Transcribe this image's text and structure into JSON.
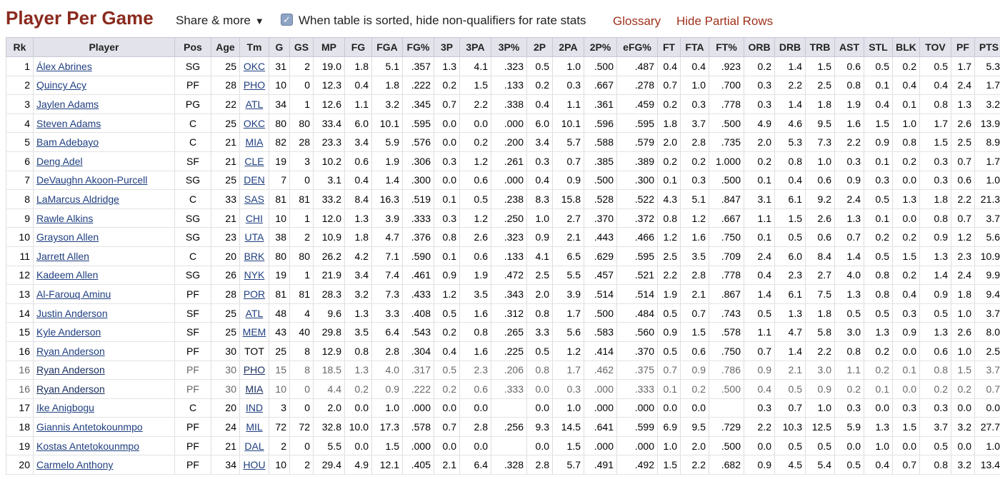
{
  "header": {
    "title": "Player Per Game",
    "share_label": "Share & more",
    "share_arrow": "▼",
    "checkbox_checked": true,
    "checkbox_label": "When table is sorted, hide non-qualifiers for rate stats",
    "glossary_link": "Glossary",
    "hide_partial_link": "Hide Partial Rows"
  },
  "colors": {
    "title": "#8a2a1e",
    "link": "#a0321c",
    "table_link": "#1f3f80",
    "header_bg": "#e3e3ec"
  },
  "table": {
    "columns": [
      "Rk",
      "Player",
      "Pos",
      "Age",
      "Tm",
      "G",
      "GS",
      "MP",
      "FG",
      "FGA",
      "FG%",
      "3P",
      "3PA",
      "3P%",
      "2P",
      "2PA",
      "2P%",
      "eFG%",
      "FT",
      "FTA",
      "FT%",
      "ORB",
      "DRB",
      "TRB",
      "AST",
      "STL",
      "BLK",
      "TOV",
      "PF",
      "PTS"
    ],
    "rows": [
      {
        "partial": false,
        "cells": [
          "1",
          "Álex Abrines",
          "SG",
          "25",
          "OKC",
          "31",
          "2",
          "19.0",
          "1.8",
          "5.1",
          ".357",
          "1.3",
          "4.1",
          ".323",
          "0.5",
          "1.0",
          ".500",
          ".487",
          "0.4",
          "0.4",
          ".923",
          "0.2",
          "1.4",
          "1.5",
          "0.6",
          "0.5",
          "0.2",
          "0.5",
          "1.7",
          "5.3"
        ]
      },
      {
        "partial": false,
        "cells": [
          "2",
          "Quincy Acy",
          "PF",
          "28",
          "PHO",
          "10",
          "0",
          "12.3",
          "0.4",
          "1.8",
          ".222",
          "0.2",
          "1.5",
          ".133",
          "0.2",
          "0.3",
          ".667",
          ".278",
          "0.7",
          "1.0",
          ".700",
          "0.3",
          "2.2",
          "2.5",
          "0.8",
          "0.1",
          "0.4",
          "0.4",
          "2.4",
          "1.7"
        ]
      },
      {
        "partial": false,
        "cells": [
          "3",
          "Jaylen Adams",
          "PG",
          "22",
          "ATL",
          "34",
          "1",
          "12.6",
          "1.1",
          "3.2",
          ".345",
          "0.7",
          "2.2",
          ".338",
          "0.4",
          "1.1",
          ".361",
          ".459",
          "0.2",
          "0.3",
          ".778",
          "0.3",
          "1.4",
          "1.8",
          "1.9",
          "0.4",
          "0.1",
          "0.8",
          "1.3",
          "3.2"
        ]
      },
      {
        "partial": false,
        "cells": [
          "4",
          "Steven Adams",
          "C",
          "25",
          "OKC",
          "80",
          "80",
          "33.4",
          "6.0",
          "10.1",
          ".595",
          "0.0",
          "0.0",
          ".000",
          "6.0",
          "10.1",
          ".596",
          ".595",
          "1.8",
          "3.7",
          ".500",
          "4.9",
          "4.6",
          "9.5",
          "1.6",
          "1.5",
          "1.0",
          "1.7",
          "2.6",
          "13.9"
        ]
      },
      {
        "partial": false,
        "cells": [
          "5",
          "Bam Adebayo",
          "C",
          "21",
          "MIA",
          "82",
          "28",
          "23.3",
          "3.4",
          "5.9",
          ".576",
          "0.0",
          "0.2",
          ".200",
          "3.4",
          "5.7",
          ".588",
          ".579",
          "2.0",
          "2.8",
          ".735",
          "2.0",
          "5.3",
          "7.3",
          "2.2",
          "0.9",
          "0.8",
          "1.5",
          "2.5",
          "8.9"
        ]
      },
      {
        "partial": false,
        "cells": [
          "6",
          "Deng Adel",
          "SF",
          "21",
          "CLE",
          "19",
          "3",
          "10.2",
          "0.6",
          "1.9",
          ".306",
          "0.3",
          "1.2",
          ".261",
          "0.3",
          "0.7",
          ".385",
          ".389",
          "0.2",
          "0.2",
          "1.000",
          "0.2",
          "0.8",
          "1.0",
          "0.3",
          "0.1",
          "0.2",
          "0.3",
          "0.7",
          "1.7"
        ]
      },
      {
        "partial": false,
        "cells": [
          "7",
          "DeVaughn Akoon-Purcell",
          "SG",
          "25",
          "DEN",
          "7",
          "0",
          "3.1",
          "0.4",
          "1.4",
          ".300",
          "0.0",
          "0.6",
          ".000",
          "0.4",
          "0.9",
          ".500",
          ".300",
          "0.1",
          "0.3",
          ".500",
          "0.1",
          "0.4",
          "0.6",
          "0.9",
          "0.3",
          "0.0",
          "0.3",
          "0.6",
          "1.0"
        ]
      },
      {
        "partial": false,
        "cells": [
          "8",
          "LaMarcus Aldridge",
          "C",
          "33",
          "SAS",
          "81",
          "81",
          "33.2",
          "8.4",
          "16.3",
          ".519",
          "0.1",
          "0.5",
          ".238",
          "8.3",
          "15.8",
          ".528",
          ".522",
          "4.3",
          "5.1",
          ".847",
          "3.1",
          "6.1",
          "9.2",
          "2.4",
          "0.5",
          "1.3",
          "1.8",
          "2.2",
          "21.3"
        ]
      },
      {
        "partial": false,
        "cells": [
          "9",
          "Rawle Alkins",
          "SG",
          "21",
          "CHI",
          "10",
          "1",
          "12.0",
          "1.3",
          "3.9",
          ".333",
          "0.3",
          "1.2",
          ".250",
          "1.0",
          "2.7",
          ".370",
          ".372",
          "0.8",
          "1.2",
          ".667",
          "1.1",
          "1.5",
          "2.6",
          "1.3",
          "0.1",
          "0.0",
          "0.8",
          "0.7",
          "3.7"
        ]
      },
      {
        "partial": false,
        "cells": [
          "10",
          "Grayson Allen",
          "SG",
          "23",
          "UTA",
          "38",
          "2",
          "10.9",
          "1.8",
          "4.7",
          ".376",
          "0.8",
          "2.6",
          ".323",
          "0.9",
          "2.1",
          ".443",
          ".466",
          "1.2",
          "1.6",
          ".750",
          "0.1",
          "0.5",
          "0.6",
          "0.7",
          "0.2",
          "0.2",
          "0.9",
          "1.2",
          "5.6"
        ]
      },
      {
        "partial": false,
        "cells": [
          "11",
          "Jarrett Allen",
          "C",
          "20",
          "BRK",
          "80",
          "80",
          "26.2",
          "4.2",
          "7.1",
          ".590",
          "0.1",
          "0.6",
          ".133",
          "4.1",
          "6.5",
          ".629",
          ".595",
          "2.5",
          "3.5",
          ".709",
          "2.4",
          "6.0",
          "8.4",
          "1.4",
          "0.5",
          "1.5",
          "1.3",
          "2.3",
          "10.9"
        ]
      },
      {
        "partial": false,
        "cells": [
          "12",
          "Kadeem Allen",
          "SG",
          "26",
          "NYK",
          "19",
          "1",
          "21.9",
          "3.4",
          "7.4",
          ".461",
          "0.9",
          "1.9",
          ".472",
          "2.5",
          "5.5",
          ".457",
          ".521",
          "2.2",
          "2.8",
          ".778",
          "0.4",
          "2.3",
          "2.7",
          "4.0",
          "0.8",
          "0.2",
          "1.4",
          "2.4",
          "9.9"
        ]
      },
      {
        "partial": false,
        "cells": [
          "13",
          "Al-Farouq Aminu",
          "PF",
          "28",
          "POR",
          "81",
          "81",
          "28.3",
          "3.2",
          "7.3",
          ".433",
          "1.2",
          "3.5",
          ".343",
          "2.0",
          "3.9",
          ".514",
          ".514",
          "1.9",
          "2.1",
          ".867",
          "1.4",
          "6.1",
          "7.5",
          "1.3",
          "0.8",
          "0.4",
          "0.9",
          "1.8",
          "9.4"
        ]
      },
      {
        "partial": false,
        "cells": [
          "14",
          "Justin Anderson",
          "SF",
          "25",
          "ATL",
          "48",
          "4",
          "9.6",
          "1.3",
          "3.3",
          ".408",
          "0.5",
          "1.6",
          ".312",
          "0.8",
          "1.7",
          ".500",
          ".484",
          "0.5",
          "0.7",
          ".743",
          "0.5",
          "1.3",
          "1.8",
          "0.5",
          "0.5",
          "0.3",
          "0.5",
          "1.0",
          "3.7"
        ]
      },
      {
        "partial": false,
        "cells": [
          "15",
          "Kyle Anderson",
          "SF",
          "25",
          "MEM",
          "43",
          "40",
          "29.8",
          "3.5",
          "6.4",
          ".543",
          "0.2",
          "0.8",
          ".265",
          "3.3",
          "5.6",
          ".583",
          ".560",
          "0.9",
          "1.5",
          ".578",
          "1.1",
          "4.7",
          "5.8",
          "3.0",
          "1.3",
          "0.9",
          "1.3",
          "2.6",
          "8.0"
        ]
      },
      {
        "partial": false,
        "cells": [
          "16",
          "Ryan Anderson",
          "PF",
          "30",
          "TOT",
          "25",
          "8",
          "12.9",
          "0.8",
          "2.8",
          ".304",
          "0.4",
          "1.6",
          ".225",
          "0.5",
          "1.2",
          ".414",
          ".370",
          "0.5",
          "0.6",
          ".750",
          "0.7",
          "1.4",
          "2.2",
          "0.8",
          "0.2",
          "0.0",
          "0.6",
          "1.0",
          "2.5"
        ]
      },
      {
        "partial": true,
        "cells": [
          "16",
          "Ryan Anderson",
          "PF",
          "30",
          "PHO",
          "15",
          "8",
          "18.5",
          "1.3",
          "4.0",
          ".317",
          "0.5",
          "2.3",
          ".206",
          "0.8",
          "1.7",
          ".462",
          ".375",
          "0.7",
          "0.9",
          ".786",
          "0.9",
          "2.1",
          "3.0",
          "1.1",
          "0.2",
          "0.1",
          "0.8",
          "1.5",
          "3.7"
        ]
      },
      {
        "partial": true,
        "cells": [
          "16",
          "Ryan Anderson",
          "PF",
          "30",
          "MIA",
          "10",
          "0",
          "4.4",
          "0.2",
          "0.9",
          ".222",
          "0.2",
          "0.6",
          ".333",
          "0.0",
          "0.3",
          ".000",
          ".333",
          "0.1",
          "0.2",
          ".500",
          "0.4",
          "0.5",
          "0.9",
          "0.2",
          "0.1",
          "0.0",
          "0.2",
          "0.2",
          "0.7"
        ]
      },
      {
        "partial": false,
        "cells": [
          "17",
          "Ike Anigbogu",
          "C",
          "20",
          "IND",
          "3",
          "0",
          "2.0",
          "0.0",
          "1.0",
          ".000",
          "0.0",
          "0.0",
          "",
          "0.0",
          "1.0",
          ".000",
          ".000",
          "0.0",
          "0.0",
          "",
          "0.3",
          "0.7",
          "1.0",
          "0.3",
          "0.0",
          "0.3",
          "0.3",
          "0.0",
          "0.0"
        ]
      },
      {
        "partial": false,
        "cells": [
          "18",
          "Giannis Antetokounmpo",
          "PF",
          "24",
          "MIL",
          "72",
          "72",
          "32.8",
          "10.0",
          "17.3",
          ".578",
          "0.7",
          "2.8",
          ".256",
          "9.3",
          "14.5",
          ".641",
          ".599",
          "6.9",
          "9.5",
          ".729",
          "2.2",
          "10.3",
          "12.5",
          "5.9",
          "1.3",
          "1.5",
          "3.7",
          "3.2",
          "27.7"
        ]
      },
      {
        "partial": false,
        "cells": [
          "19",
          "Kostas Antetokounmpo",
          "PF",
          "21",
          "DAL",
          "2",
          "0",
          "5.5",
          "0.0",
          "1.5",
          ".000",
          "0.0",
          "0.0",
          "",
          "0.0",
          "1.5",
          ".000",
          ".000",
          "1.0",
          "2.0",
          ".500",
          "0.0",
          "0.5",
          "0.5",
          "0.0",
          "1.0",
          "0.0",
          "0.5",
          "0.0",
          "1.0"
        ]
      },
      {
        "partial": false,
        "cells": [
          "20",
          "Carmelo Anthony",
          "PF",
          "34",
          "HOU",
          "10",
          "2",
          "29.4",
          "4.9",
          "12.1",
          ".405",
          "2.1",
          "6.4",
          ".328",
          "2.8",
          "5.7",
          ".491",
          ".492",
          "1.5",
          "2.2",
          ".682",
          "0.9",
          "4.5",
          "5.4",
          "0.5",
          "0.4",
          "0.7",
          "0.8",
          "3.2",
          "13.4"
        ]
      }
    ]
  }
}
